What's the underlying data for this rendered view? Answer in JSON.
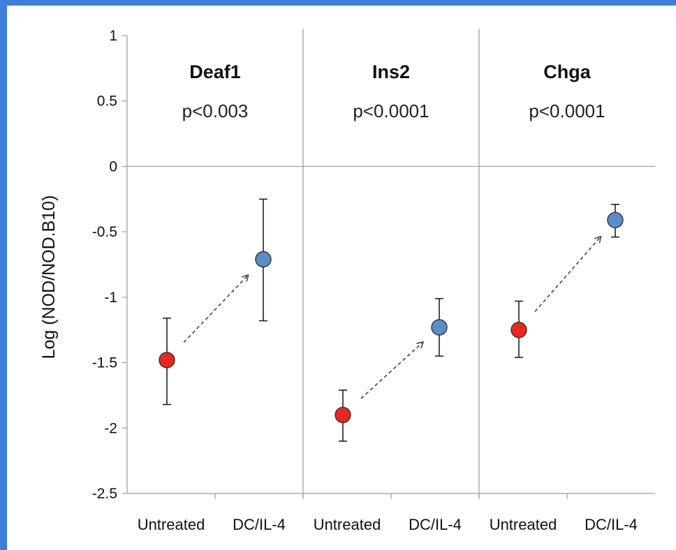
{
  "chart_data": {
    "type": "scatter",
    "ylabel": "Log (NOD/NOD.B10)",
    "ylim": [
      -2.5,
      1
    ],
    "yticks": [
      1,
      0.5,
      0,
      -0.5,
      -1,
      -1.5,
      -2,
      -2.5
    ],
    "ytick_labels": [
      "1",
      "0.5",
      "0",
      "-0.5",
      "-1",
      "-1.5",
      "-2",
      "-2.5"
    ],
    "categories": [
      "Untreated",
      "DC/IL-4",
      "Untreated",
      "DC/IL-4",
      "Untreated",
      "DC/IL-4"
    ],
    "colors": {
      "Untreated": "#e8281e",
      "DC/IL-4": "#5b8ec8"
    },
    "panels": [
      {
        "gene": "Deaf1",
        "p_value": "p<0.003",
        "points": [
          {
            "group": "Untreated",
            "value": -1.48,
            "err_low": -1.82,
            "err_high": -1.16
          },
          {
            "group": "DC/IL-4",
            "value": -0.71,
            "err_low": -1.18,
            "err_high": -0.25
          }
        ]
      },
      {
        "gene": "Ins2",
        "p_value": "p<0.0001",
        "points": [
          {
            "group": "Untreated",
            "value": -1.9,
            "err_low": -2.1,
            "err_high": -1.71
          },
          {
            "group": "DC/IL-4",
            "value": -1.23,
            "err_low": -1.45,
            "err_high": -1.01
          }
        ]
      },
      {
        "gene": "Chga",
        "p_value": "p<0.0001",
        "points": [
          {
            "group": "Untreated",
            "value": -1.25,
            "err_low": -1.46,
            "err_high": -1.03
          },
          {
            "group": "DC/IL-4",
            "value": -0.41,
            "err_low": -0.54,
            "err_high": -0.29
          }
        ]
      }
    ]
  }
}
